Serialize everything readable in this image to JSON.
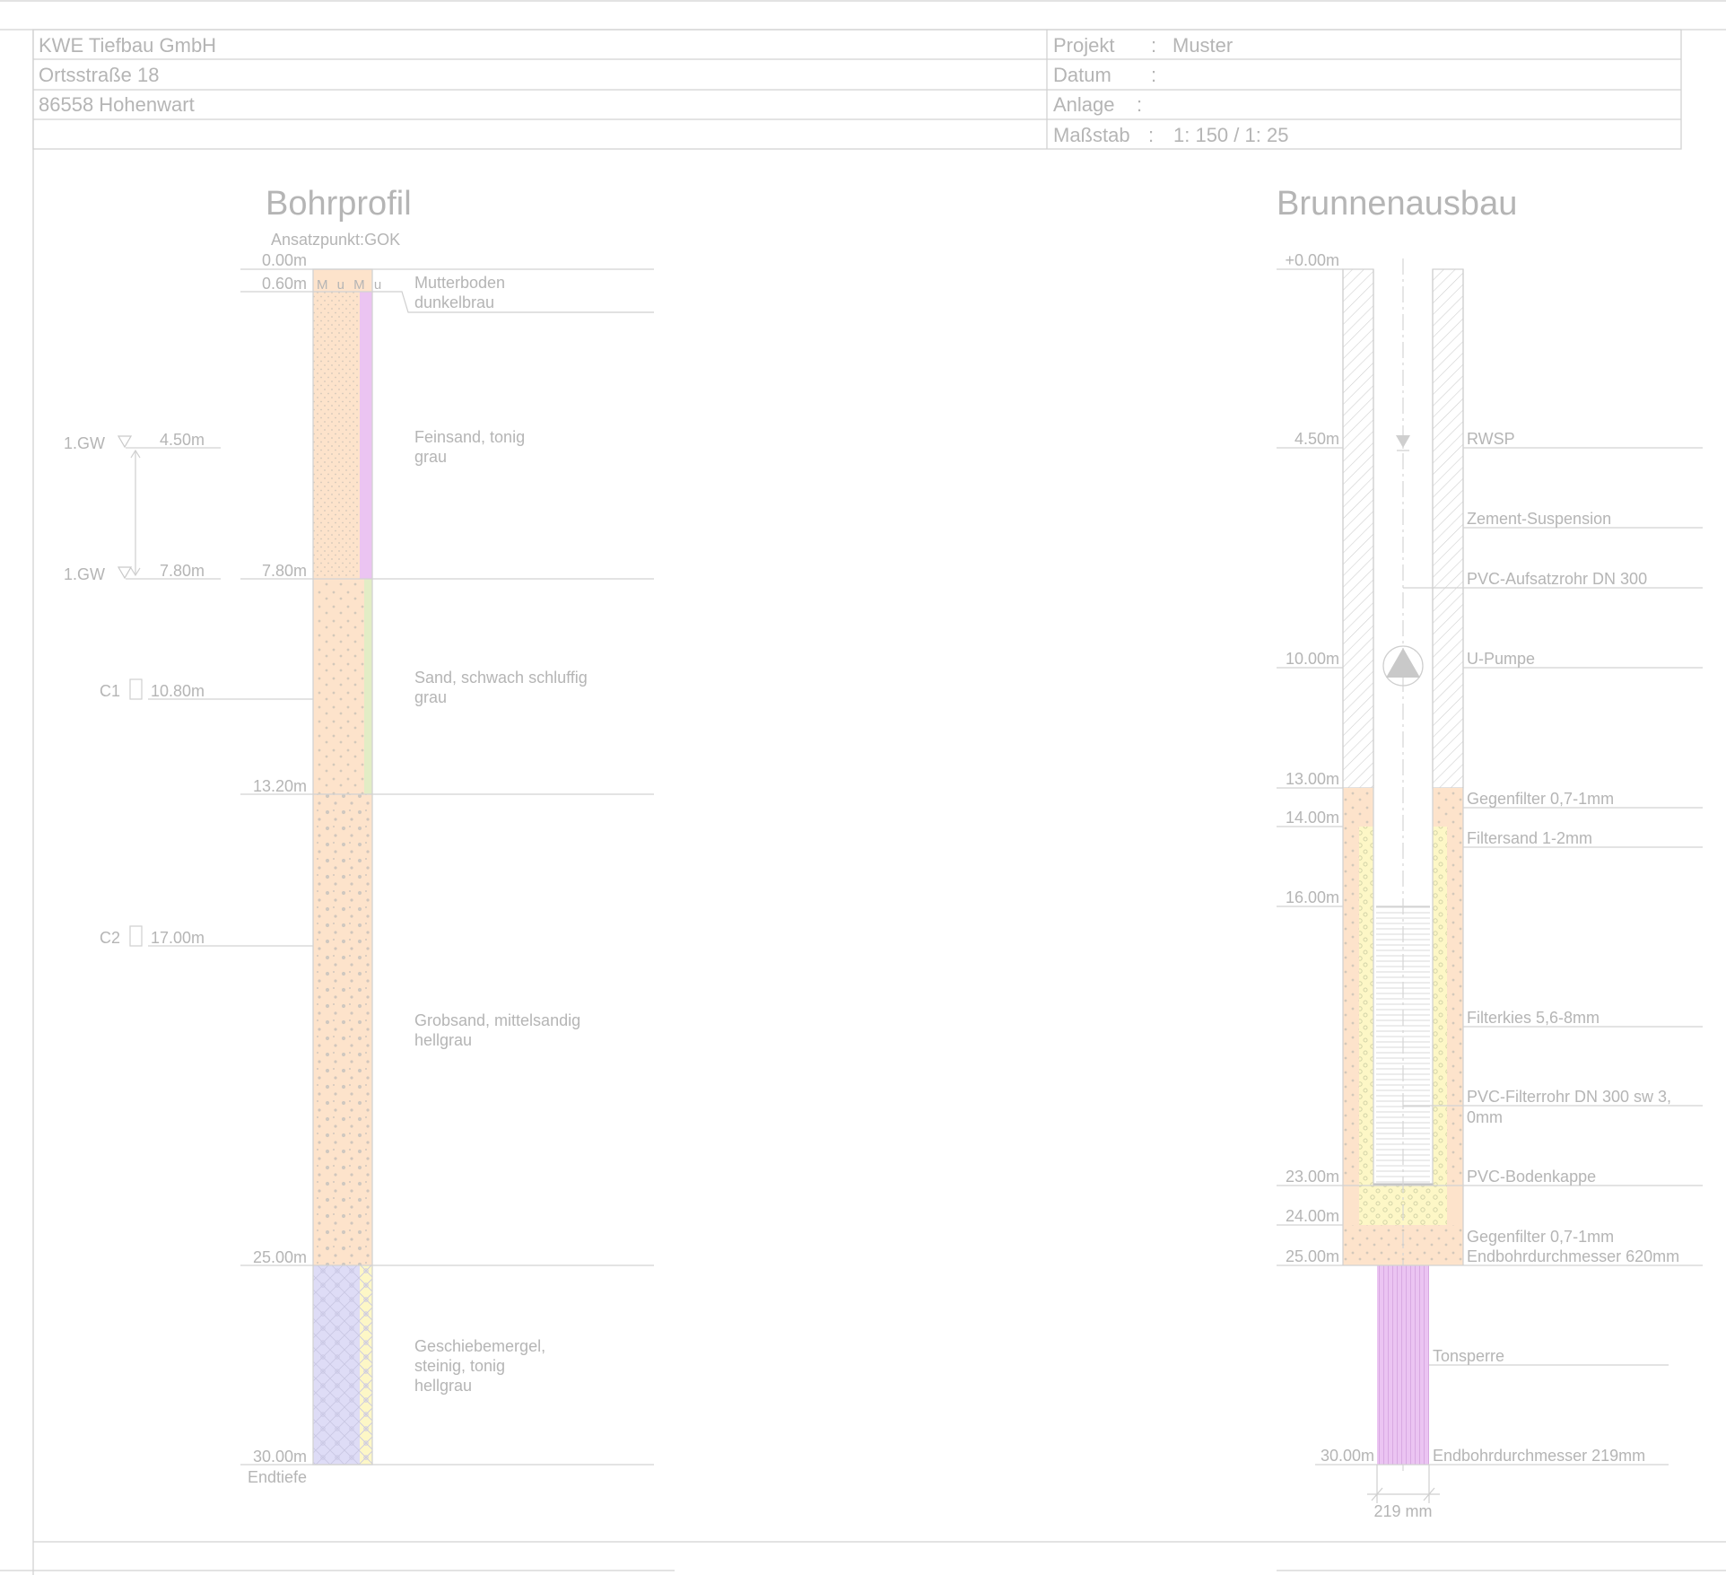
{
  "header": {
    "company": "KWE Tiefbau GmbH",
    "street": "Ortsstraße 18",
    "city": "86558 Hohenwart",
    "projekt_label": "Projekt",
    "projekt_value": "Muster",
    "datum_label": "Datum",
    "anlage_label": "Anlage",
    "massstab_label": "Maßstab",
    "massstab_value": "1: 150 / 1: 25",
    "colon": ":"
  },
  "bohrprofil": {
    "title": "Bohrprofil",
    "ansatzpunkt": "Ansatzpunkt:GOK",
    "depths": [
      "0.00m",
      "0.60m",
      "7.80m",
      "13.20m",
      "25.00m",
      "30.00m"
    ],
    "endtiefe": "Endtiefe",
    "layer_symbols": "M u M u",
    "layers": [
      {
        "top": 0.0,
        "bottom": 0.6,
        "line1": "Mutterboden",
        "line2": "dunkelbrau",
        "line3": ""
      },
      {
        "top": 0.6,
        "bottom": 7.8,
        "line1": "Feinsand, tonig",
        "line2": "grau",
        "line3": ""
      },
      {
        "top": 7.8,
        "bottom": 13.2,
        "line1": "Sand, schwach schluffig",
        "line2": "grau",
        "line3": ""
      },
      {
        "top": 13.2,
        "bottom": 25.0,
        "line1": "Grobsand, mittelsandig",
        "line2": "hellgrau",
        "line3": ""
      },
      {
        "top": 25.0,
        "bottom": 30.0,
        "line1": "Geschiebemergel,",
        "line2": "steinig, tonig",
        "line3": "hellgrau"
      }
    ],
    "groundwater": [
      {
        "label": "1.GW",
        "depth": "4.50m"
      },
      {
        "label": "1.GW",
        "depth": "7.80m"
      }
    ],
    "samples": [
      {
        "label": "C1",
        "depth": "10.80m"
      },
      {
        "label": "C2",
        "depth": "17.00m"
      }
    ]
  },
  "brunnenausbau": {
    "title": "Brunnenausbau",
    "depths": [
      "+0.00m",
      "4.50m",
      "10.00m",
      "13.00m",
      "14.00m",
      "16.00m",
      "23.00m",
      "24.00m",
      "25.00m",
      "30.00m"
    ],
    "labels": {
      "rwsp": "RWSP",
      "zement": "Zement-Suspension",
      "aufsatzrohr": "PVC-Aufsatzrohr DN 300",
      "pumpe": "U-Pumpe",
      "gegenfilter1": "Gegenfilter 0,7-1mm",
      "filtersand": "Filtersand 1-2mm",
      "filterkies": "Filterkies 5,6-8mm",
      "filterrohr1": "PVC-Filterrohr DN 300 sw 3,",
      "filterrohr2": "0mm",
      "bodenkappe": "PVC-Bodenkappe",
      "gegenfilter2": "Gegenfilter 0,7-1mm",
      "endbohr620": "Endbohrdurchmesser 620mm",
      "tonsperre": "Tonsperre",
      "endbohr219": "Endbohrdurchmesser 219mm",
      "dim219": "219 mm"
    }
  },
  "colors": {
    "orange": "#fde3cb",
    "violet": "#ebc4f2",
    "green": "#e2edc5",
    "yellow": "#fdf7c6",
    "lavender": "#dedcf6",
    "line": "#d2d2d2",
    "text": "#b5b5b5"
  }
}
